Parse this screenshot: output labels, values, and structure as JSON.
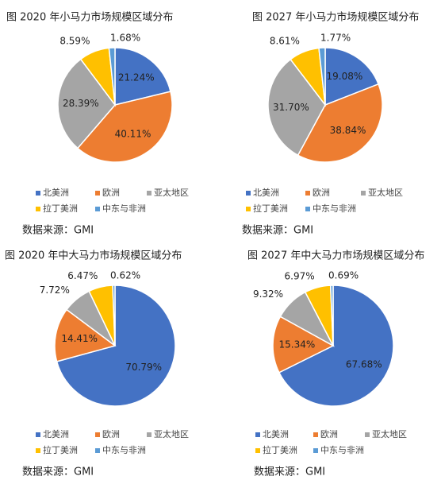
{
  "chart_data": [
    {
      "type": "pie",
      "title": "图  2020 年小马力市场规模区域分布",
      "source": "数据来源：GMI",
      "categories": [
        "北美洲",
        "欧洲",
        "亚太地区",
        "拉丁美洲",
        "中东与非洲"
      ],
      "values": [
        21.24,
        40.11,
        28.39,
        8.59,
        1.68
      ],
      "value_labels": [
        "21.24%",
        "40.11%",
        "28.39%",
        "8.59%",
        "1.68%"
      ],
      "colors": [
        "#4472c4",
        "#ed7d31",
        "#a5a5a5",
        "#ffc000",
        "#5b9bd5"
      ]
    },
    {
      "type": "pie",
      "title": "图  2027 年小马力市场规模区域分布",
      "source": "数据来源：GMI",
      "categories": [
        "北美洲",
        "欧洲",
        "亚太地区",
        "拉丁美洲",
        "中东与非洲"
      ],
      "values": [
        19.08,
        38.84,
        31.7,
        8.61,
        1.77
      ],
      "value_labels": [
        "19.08%",
        "38.84%",
        "31.70%",
        "8.61%",
        "1.77%"
      ],
      "colors": [
        "#4472c4",
        "#ed7d31",
        "#a5a5a5",
        "#ffc000",
        "#5b9bd5"
      ]
    },
    {
      "type": "pie",
      "title": "图  2020 年中大马力市场规模区域分布",
      "source": "数据来源：GMI",
      "categories": [
        "北美洲",
        "欧洲",
        "亚太地区",
        "拉丁美洲",
        "中东与非洲"
      ],
      "values": [
        70.79,
        14.41,
        7.72,
        6.47,
        0.62
      ],
      "value_labels": [
        "70.79%",
        "14.41%",
        "7.72%",
        "6.47%",
        "0.62%"
      ],
      "colors": [
        "#4472c4",
        "#ed7d31",
        "#a5a5a5",
        "#ffc000",
        "#5b9bd5"
      ]
    },
    {
      "type": "pie",
      "title": "图  2027 年中大马力市场规模区域分布",
      "source": "数据来源：GMI",
      "categories": [
        "北美洲",
        "欧洲",
        "亚太地区",
        "拉丁美洲",
        "中东与非洲"
      ],
      "values": [
        67.68,
        15.34,
        9.32,
        6.97,
        0.69
      ],
      "value_labels": [
        "67.68%",
        "15.34%",
        "9.32%",
        "6.97%",
        "0.69%"
      ],
      "colors": [
        "#4472c4",
        "#ed7d31",
        "#a5a5a5",
        "#ffc000",
        "#5b9bd5"
      ]
    }
  ]
}
